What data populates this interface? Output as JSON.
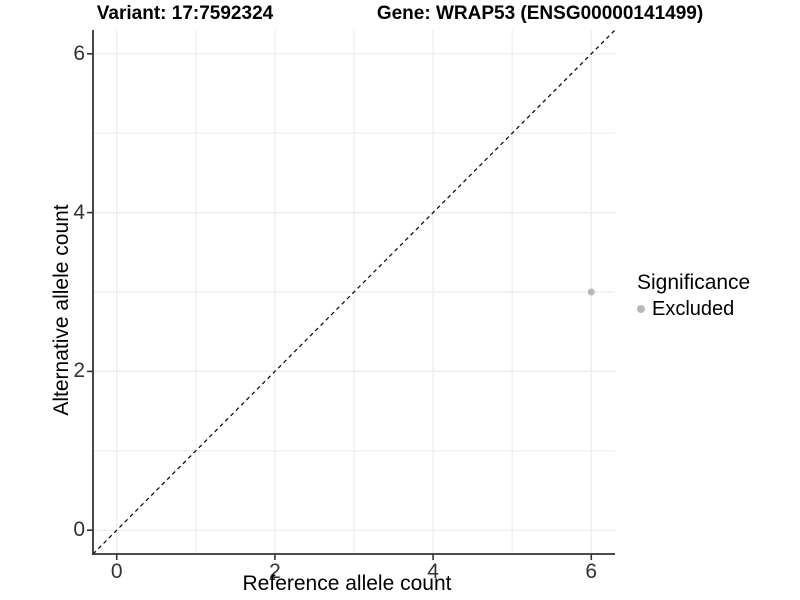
{
  "titles": {
    "variant": "Variant: 17:7592324",
    "gene": "Gene: WRAP53 (ENSG00000141499)"
  },
  "axes": {
    "x_label": "Reference allele count",
    "y_label": "Alternative allele count",
    "x_tick_labels": [
      "0",
      "2",
      "4",
      "6"
    ],
    "y_tick_labels": [
      "0",
      "2",
      "4",
      "6"
    ]
  },
  "legend": {
    "title": "Significance",
    "items": [
      {
        "label": "Excluded",
        "color": "#b8b8b8"
      }
    ]
  },
  "colors": {
    "background": "#ffffff",
    "grid": "#ebebeb",
    "axis": "#333333",
    "tick_text": "#333333",
    "point": "#b8b8b8",
    "diagonal": "#000000"
  },
  "chart_data": {
    "type": "scatter",
    "title": "Variant: 17:7592324 / Gene: WRAP53 (ENSG00000141499)",
    "xlabel": "Reference allele count",
    "ylabel": "Alternative allele count",
    "xlim": [
      -0.3,
      6.3
    ],
    "ylim": [
      -0.3,
      6.3
    ],
    "x_ticks": [
      0,
      2,
      4,
      6
    ],
    "y_ticks": [
      0,
      2,
      4,
      6
    ],
    "x_grid": [
      0,
      1,
      2,
      3,
      4,
      5,
      6
    ],
    "y_grid": [
      0,
      1,
      2,
      3,
      4,
      5,
      6
    ],
    "grid": true,
    "legend_position": "right",
    "legend_title": "Significance",
    "series": [
      {
        "name": "Excluded",
        "color": "#b8b8b8",
        "points": [
          {
            "x": 6,
            "y": 3
          }
        ]
      }
    ],
    "reference_line": {
      "type": "identity",
      "slope": 1,
      "intercept": 0,
      "style": "dashed",
      "color": "#000000"
    }
  }
}
